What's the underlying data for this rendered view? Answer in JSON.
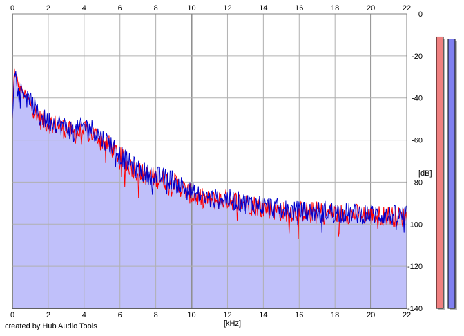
{
  "credit": "created by Hub Audio Tools",
  "chart_data": {
    "type": "area",
    "title": "",
    "xlabel": "[kHz]",
    "ylabel": "[dB]",
    "xlim": [
      0,
      22
    ],
    "ylim": [
      -140,
      0
    ],
    "xticks": [
      0,
      2,
      4,
      6,
      8,
      10,
      12,
      14,
      16,
      18,
      20,
      22
    ],
    "xtick_labels": [
      "0",
      "2",
      "4",
      "6",
      "8",
      "10",
      "12",
      "14",
      "16",
      "18",
      "20",
      "22"
    ],
    "yticks": [
      0,
      -20,
      -40,
      -60,
      -80,
      -100,
      -120,
      -140
    ],
    "ytick_labels": [
      "0",
      "-20",
      "-40",
      "-60",
      "-80",
      "-100",
      "-120",
      "-140"
    ],
    "grid": true,
    "legend": "none",
    "series": [
      {
        "color": "#ff0000",
        "x": [
          0,
          0.1,
          0.2,
          0.4,
          0.6,
          0.8,
          1,
          1.5,
          2,
          2.5,
          3,
          3.5,
          4,
          4.5,
          5,
          5.5,
          6,
          6.5,
          7,
          7.5,
          8,
          8.5,
          9,
          9.5,
          10,
          11,
          12,
          13,
          14,
          15,
          16,
          17,
          18,
          19,
          20,
          21,
          22
        ],
        "y": [
          -50,
          -27,
          -30,
          -35,
          -38,
          -40,
          -42,
          -50,
          -52,
          -53,
          -55,
          -57,
          -56,
          -57,
          -60,
          -63,
          -68,
          -72,
          -75,
          -77,
          -78,
          -79,
          -80,
          -83,
          -86,
          -89,
          -88,
          -90,
          -92,
          -94,
          -94,
          -94,
          -95,
          -95,
          -96,
          -96,
          -97
        ]
      },
      {
        "color": "#0000cc",
        "x": [
          0,
          0.1,
          0.2,
          0.4,
          0.6,
          0.8,
          1,
          1.5,
          2,
          2.5,
          3,
          3.5,
          4,
          4.5,
          5,
          5.5,
          6,
          6.5,
          7,
          7.5,
          8,
          8.5,
          9,
          9.5,
          10,
          11,
          12,
          13,
          14,
          15,
          16,
          17,
          18,
          19,
          20,
          21,
          22
        ],
        "y": [
          -50,
          -26,
          -29,
          -34,
          -37,
          -39,
          -41,
          -49,
          -51,
          -52,
          -54,
          -56,
          -53,
          -55,
          -59,
          -62,
          -67,
          -71,
          -74,
          -76,
          -77,
          -78,
          -79,
          -82,
          -85,
          -88,
          -88,
          -90,
          -91,
          -93,
          -94,
          -94,
          -94,
          -95,
          -95,
          -96,
          -96
        ]
      }
    ],
    "fill_color": "#c0c0fa",
    "meters": [
      {
        "color": "#f08080",
        "level": -11
      },
      {
        "color": "#8080f0",
        "level": -12
      }
    ]
  }
}
